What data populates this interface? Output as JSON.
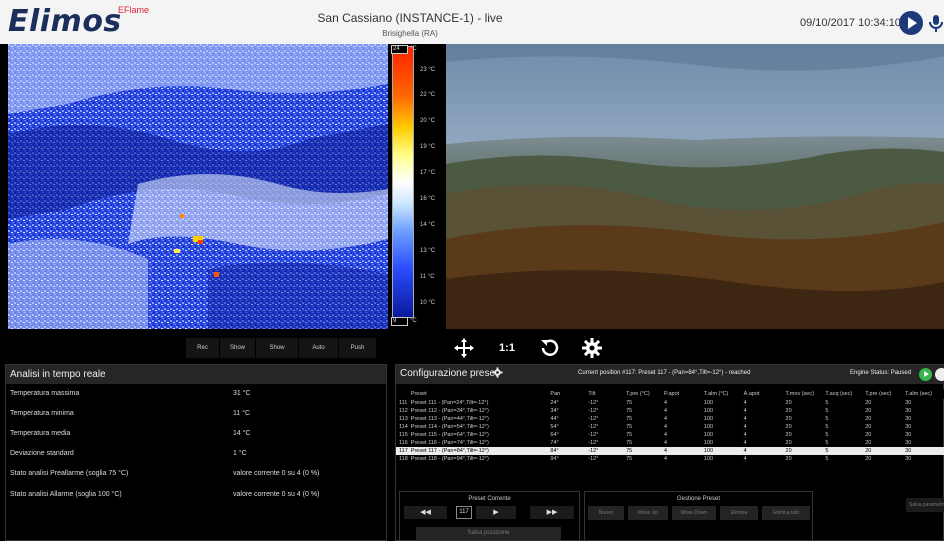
{
  "header": {
    "logo": "Elimos",
    "logo_sup": "EFlame",
    "title": "San Cassiano (INSTANCE-1) - live",
    "subtitle": "Brisighella (RA)",
    "datetime": "09/10/2017 10:34:10"
  },
  "thermal_scale": {
    "max_box": "24",
    "min_box": "9",
    "unit": "°C",
    "ticks": [
      "23 °C",
      "22 °C",
      "20 °C",
      "19 °C",
      "17 °C",
      "16 °C",
      "14 °C",
      "13 °C",
      "11 °C",
      "10 °C"
    ]
  },
  "thermal_controls": [
    "Rec",
    "Show Alm",
    "Show Prealm",
    "Auto range",
    "Push auto"
  ],
  "camera_controls": {
    "one_to_one": "1:1"
  },
  "analysis": {
    "title": "Analisi in tempo reale",
    "rows": [
      {
        "label": "Temperatura massima",
        "value": "31 °C"
      },
      {
        "label": "Temperatura minima",
        "value": "11 °C"
      },
      {
        "label": "Temperatura media",
        "value": "14 °C"
      },
      {
        "label": "Deviazione standard",
        "value": "1 °C"
      },
      {
        "label": "Stato analisi Preallarme (soglia 75 °C)",
        "value": "valore corrente 0 su 4 (0 %)"
      },
      {
        "label": "Stato analisi Allarme (soglia 100 °C)",
        "value": "valore corrente 0 su 4 (0 %)"
      }
    ]
  },
  "config": {
    "title": "Configurazione preset",
    "current_position": "Current position #117: Preset 117 - (Pan=84°,Tilt=-12°) - reached",
    "engine_status": "Engine Status: Paused",
    "columns": [
      "Preset",
      "Pan",
      "Tilt",
      "T.pre (°C)",
      "P.apot",
      "T.alm (°C)",
      "A.apot",
      "T.mov (sec)",
      "T.acq (sec)",
      "T.pre (sec)",
      "T.alm (sec)"
    ],
    "rows": [
      [
        "111",
        "Preset 111 - (Pan=24°,Tilt=-12°)",
        "24°",
        "-12°",
        "75",
        "4",
        "100",
        "4",
        "20",
        "5",
        "20",
        "30"
      ],
      [
        "112",
        "Preset 112 - (Pan=34°,Tilt=-12°)",
        "34°",
        "-12°",
        "75",
        "4",
        "100",
        "4",
        "20",
        "5",
        "20",
        "30"
      ],
      [
        "113",
        "Preset 113 - (Pan=44°,Tilt=-12°)",
        "44°",
        "-12°",
        "75",
        "4",
        "100",
        "4",
        "20",
        "5",
        "20",
        "30"
      ],
      [
        "114",
        "Preset 114 - (Pan=54°,Tilt=-12°)",
        "54°",
        "-12°",
        "75",
        "4",
        "100",
        "4",
        "20",
        "5",
        "20",
        "30"
      ],
      [
        "115",
        "Preset 115 - (Pan=64°,Tilt=-12°)",
        "64°",
        "-12°",
        "75",
        "4",
        "100",
        "4",
        "20",
        "5",
        "20",
        "30"
      ],
      [
        "116",
        "Preset 116 - (Pan=74°,Tilt=-12°)",
        "74°",
        "-12°",
        "75",
        "4",
        "100",
        "4",
        "20",
        "5",
        "20",
        "30"
      ],
      [
        "117",
        "Preset 117 - (Pan=84°,Tilt=-12°)",
        "84°",
        "-12°",
        "75",
        "4",
        "100",
        "4",
        "20",
        "5",
        "20",
        "30"
      ],
      [
        "118",
        "Preset 118 - (Pan=94°,Tilt=-12°)",
        "94°",
        "-12°",
        "75",
        "4",
        "100",
        "4",
        "20",
        "5",
        "20",
        "30"
      ]
    ],
    "selected_index": 6,
    "preset_corrente": {
      "title": "Preset Corrente",
      "current": "117",
      "prev_prev": "◀◀",
      "prev": "◀",
      "next": "▶",
      "next_next": "▶▶",
      "save": "Salva posizione"
    },
    "gestione": {
      "title": "Gestione Preset",
      "buttons": [
        "Nuovo",
        "Move Up",
        "Move Down",
        "Elimina",
        "Elimina tutti"
      ]
    },
    "save_params": "Salva parametri"
  }
}
